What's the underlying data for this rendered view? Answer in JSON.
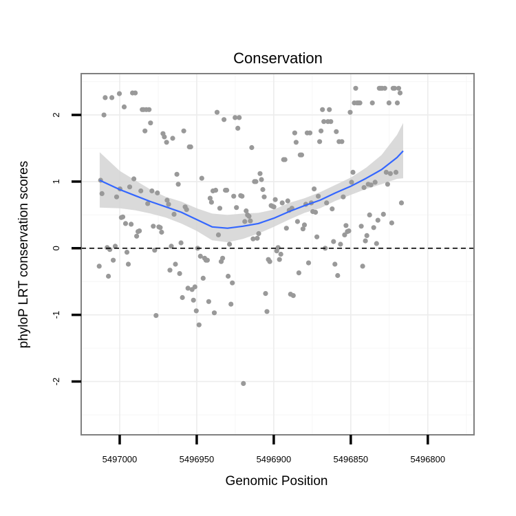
{
  "chart_data": {
    "type": "scatter",
    "title": "Conservation",
    "xlabel": "Genomic Position",
    "ylabel": "phyloP LRT conservation scores",
    "x_reversed": true,
    "xlim": [
      5497025,
      5496770
    ],
    "ylim": [
      -2.8,
      2.62
    ],
    "x_ticks": [
      5497000,
      5496950,
      5496900,
      5496850,
      5496800
    ],
    "x_tick_labels": [
      "5497000",
      "5496950",
      "5496900",
      "5496850",
      "5496800"
    ],
    "y_ticks": [
      -2,
      -1,
      0,
      1,
      2
    ],
    "y_tick_labels": [
      "-2",
      "-1",
      "0",
      "1",
      "2"
    ],
    "grid": true,
    "reference_line": {
      "y": 0,
      "style": "dashed"
    },
    "colors": {
      "points": "#999999",
      "smooth": "#3366ff",
      "ribbon": "#d3d3d3",
      "panel_border": "#7f7f7f",
      "grid_major": "#ececec",
      "grid_minor": "#f6f6f6"
    },
    "points": [
      [
        5497013.3,
        -0.27
      ],
      [
        5497012.4,
        1.02
      ],
      [
        5497011.5,
        0.82
      ],
      [
        5497010.2,
        2.0
      ],
      [
        5497009.4,
        2.26
      ],
      [
        5497008.1,
        0.01
      ],
      [
        5497007.3,
        -0.42
      ],
      [
        5497006.4,
        -0.02
      ],
      [
        5497005.1,
        2.26
      ],
      [
        5497004.2,
        -0.18
      ],
      [
        5497002.9,
        0.03
      ],
      [
        5497002.0,
        0.77
      ],
      [
        5497000.2,
        2.32
      ],
      [
        5496999.8,
        0.89
      ],
      [
        5496998.9,
        0.46
      ],
      [
        5496998.0,
        0.47
      ],
      [
        5496997.1,
        2.12
      ],
      [
        5496996.2,
        0.37
      ],
      [
        5496995.3,
        -0.06
      ],
      [
        5496994.4,
        -0.24
      ],
      [
        5496993.5,
        0.92
      ],
      [
        5496992.6,
        0.36
      ],
      [
        5496991.7,
        2.33
      ],
      [
        5496990.8,
        1.04
      ],
      [
        5496989.9,
        2.33
      ],
      [
        5496989.0,
        0.18
      ],
      [
        5496988.1,
        0.25
      ],
      [
        5496987.2,
        0.26
      ],
      [
        5496986.3,
        0.86
      ],
      [
        5496985.4,
        2.08
      ],
      [
        5496984.5,
        2.08
      ],
      [
        5496983.6,
        1.76
      ],
      [
        5496982.7,
        2.08
      ],
      [
        5496981.8,
        0.67
      ],
      [
        5496980.9,
        2.08
      ],
      [
        5496980.0,
        1.88
      ],
      [
        5496979.1,
        0.86
      ],
      [
        5496978.2,
        0.33
      ],
      [
        5496977.3,
        -0.03
      ],
      [
        5496976.4,
        -1.01
      ],
      [
        5496975.5,
        0.83
      ],
      [
        5496974.6,
        0.32
      ],
      [
        5496973.7,
        0.31
      ],
      [
        5496972.8,
        0.24
      ],
      [
        5496971.9,
        1.72
      ],
      [
        5496971.0,
        1.67
      ],
      [
        5496969.6,
        1.59
      ],
      [
        5496969.2,
        0.72
      ],
      [
        5496968.3,
        0.66
      ],
      [
        5496967.4,
        -0.33
      ],
      [
        5496966.5,
        0.03
      ],
      [
        5496965.6,
        1.65
      ],
      [
        5496964.7,
        0.51
      ],
      [
        5496963.8,
        -0.24
      ],
      [
        5496962.9,
        1.11
      ],
      [
        5496962.0,
        0.96
      ],
      [
        5496961.1,
        -0.38
      ],
      [
        5496960.2,
        0.08
      ],
      [
        5496959.3,
        -0.74
      ],
      [
        5496958.4,
        1.76
      ],
      [
        5496957.5,
        0.62
      ],
      [
        5496956.6,
        0.58
      ],
      [
        5496955.7,
        -0.6
      ],
      [
        5496954.8,
        1.52
      ],
      [
        5496953.9,
        1.52
      ],
      [
        5496953.0,
        -0.62
      ],
      [
        5496952.1,
        -0.78
      ],
      [
        5496951.2,
        -0.58
      ],
      [
        5496950.3,
        -0.94
      ],
      [
        5496949.4,
        0.0
      ],
      [
        5496948.5,
        -1.15
      ],
      [
        5496947.6,
        -0.12
      ],
      [
        5496946.7,
        1.05
      ],
      [
        5496945.8,
        -0.45
      ],
      [
        5496944.9,
        -0.15
      ],
      [
        5496944.0,
        -0.18
      ],
      [
        5496943.1,
        -0.18
      ],
      [
        5496942.2,
        -0.8
      ],
      [
        5496941.3,
        0.75
      ],
      [
        5496940.4,
        0.69
      ],
      [
        5496939.5,
        0.86
      ],
      [
        5496938.6,
        -0.97
      ],
      [
        5496937.7,
        0.87
      ],
      [
        5496936.8,
        2.04
      ],
      [
        5496935.9,
        0.2
      ],
      [
        5496935.0,
        0.6
      ],
      [
        5496934.1,
        -0.2
      ],
      [
        5496933.2,
        -0.15
      ],
      [
        5496932.3,
        1.93
      ],
      [
        5496931.4,
        0.87
      ],
      [
        5496930.5,
        0.87
      ],
      [
        5496929.6,
        -0.42
      ],
      [
        5496928.7,
        0.06
      ],
      [
        5496927.8,
        -0.84
      ],
      [
        5496926.9,
        -0.52
      ],
      [
        5496926.0,
        0.78
      ],
      [
        5496925.1,
        1.96
      ],
      [
        5496924.2,
        0.61
      ],
      [
        5496923.3,
        1.8
      ],
      [
        5496922.4,
        1.96
      ],
      [
        5496921.5,
        0.79
      ],
      [
        5496920.6,
        0.78
      ],
      [
        5496919.7,
        -2.03
      ],
      [
        5496918.8,
        0.4
      ],
      [
        5496917.9,
        0.56
      ],
      [
        5496917.0,
        0.5
      ],
      [
        5496916.1,
        0.48
      ],
      [
        5496915.2,
        0.41
      ],
      [
        5496914.3,
        1.51
      ],
      [
        5496913.4,
        0.14
      ],
      [
        5496912.5,
        1.0
      ],
      [
        5496911.6,
        1.0
      ],
      [
        5496910.7,
        0.15
      ],
      [
        5496909.8,
        0.22
      ],
      [
        5496908.9,
        1.12
      ],
      [
        5496908.0,
        1.03
      ],
      [
        5496907.1,
        0.88
      ],
      [
        5496906.2,
        0.77
      ],
      [
        5496905.3,
        -0.68
      ],
      [
        5496904.4,
        -0.95
      ],
      [
        5496903.5,
        -0.17
      ],
      [
        5496902.6,
        -0.2
      ],
      [
        5496901.7,
        0.64
      ],
      [
        5496900.8,
        0.63
      ],
      [
        5496899.9,
        0.62
      ],
      [
        5496899.0,
        0.73
      ],
      [
        5496898.1,
        -0.04
      ],
      [
        5496897.2,
        0.01
      ],
      [
        5496896.3,
        -0.17
      ],
      [
        5496895.4,
        -0.09
      ],
      [
        5496894.5,
        0.68
      ],
      [
        5496893.6,
        1.33
      ],
      [
        5496892.7,
        1.33
      ],
      [
        5496891.8,
        0.3
      ],
      [
        5496890.9,
        0.71
      ],
      [
        5496890.0,
        0.57
      ],
      [
        5496889.1,
        -0.69
      ],
      [
        5496888.2,
        0.6
      ],
      [
        5496887.3,
        -0.71
      ],
      [
        5496886.4,
        1.73
      ],
      [
        5496885.5,
        1.59
      ],
      [
        5496884.6,
        0.4
      ],
      [
        5496883.7,
        -0.37
      ],
      [
        5496882.8,
        1.4
      ],
      [
        5496881.9,
        1.4
      ],
      [
        5496881.0,
        0.29
      ],
      [
        5496880.1,
        0.35
      ],
      [
        5496879.2,
        0.66
      ],
      [
        5496878.3,
        1.73
      ],
      [
        5496877.4,
        -0.22
      ],
      [
        5496876.5,
        1.73
      ],
      [
        5496875.6,
        0.68
      ],
      [
        5496874.7,
        0.55
      ],
      [
        5496873.8,
        0.89
      ],
      [
        5496872.9,
        0.54
      ],
      [
        5496872.0,
        0.17
      ],
      [
        5496871.1,
        0.78
      ],
      [
        5496870.2,
        1.6
      ],
      [
        5496869.3,
        1.76
      ],
      [
        5496868.4,
        2.08
      ],
      [
        5496867.5,
        1.9
      ],
      [
        5496866.6,
        0.0
      ],
      [
        5496865.7,
        0.68
      ],
      [
        5496864.8,
        1.9
      ],
      [
        5496863.9,
        2.08
      ],
      [
        5496863.0,
        1.9
      ],
      [
        5496862.1,
        0.59
      ],
      [
        5496861.2,
        0.1
      ],
      [
        5496860.3,
        -0.24
      ],
      [
        5496859.4,
        1.75
      ],
      [
        5496858.5,
        -0.41
      ],
      [
        5496857.6,
        1.6
      ],
      [
        5496856.7,
        0.06
      ],
      [
        5496855.8,
        1.6
      ],
      [
        5496854.9,
        0.77
      ],
      [
        5496854.0,
        0.2
      ],
      [
        5496853.1,
        0.34
      ],
      [
        5496852.2,
        0.25
      ],
      [
        5496851.3,
        0.26
      ],
      [
        5496850.4,
        2.04
      ],
      [
        5496849.5,
        0.99
      ],
      [
        5496848.6,
        1.14
      ],
      [
        5496847.7,
        2.18
      ],
      [
        5496846.8,
        2.4
      ],
      [
        5496845.9,
        2.18
      ],
      [
        5496845.0,
        2.18
      ],
      [
        5496844.1,
        2.18
      ],
      [
        5496843.2,
        0.33
      ],
      [
        5496842.3,
        -0.27
      ],
      [
        5496841.4,
        0.91
      ],
      [
        5496840.5,
        0.11
      ],
      [
        5496839.6,
        0.19
      ],
      [
        5496838.7,
        0.96
      ],
      [
        5496837.8,
        0.5
      ],
      [
        5496836.9,
        0.95
      ],
      [
        5496836.0,
        2.18
      ],
      [
        5496835.1,
        0.31
      ],
      [
        5496834.2,
        0.99
      ],
      [
        5496833.3,
        0.07
      ],
      [
        5496832.4,
        0.42
      ],
      [
        5496831.5,
        2.4
      ],
      [
        5496830.6,
        2.4
      ],
      [
        5496829.7,
        2.4
      ],
      [
        5496828.8,
        0.51
      ],
      [
        5496827.9,
        2.4
      ],
      [
        5496827.0,
        1.14
      ],
      [
        5496826.1,
        0.96
      ],
      [
        5496825.2,
        2.18
      ],
      [
        5496824.3,
        1.12
      ],
      [
        5496823.4,
        0.38
      ],
      [
        5496822.5,
        2.4
      ],
      [
        5496821.6,
        2.4
      ],
      [
        5496820.7,
        1.14
      ],
      [
        5496819.8,
        2.18
      ],
      [
        5496818.9,
        2.4
      ],
      [
        5496818.0,
        2.33
      ],
      [
        5496817.1,
        0.68
      ]
    ],
    "smooth": {
      "x": [
        5497013,
        5497000,
        5496990,
        5496980,
        5496970,
        5496960,
        5496950,
        5496940,
        5496930,
        5496920,
        5496910,
        5496900,
        5496890,
        5496880,
        5496870,
        5496860,
        5496850,
        5496840,
        5496830,
        5496820,
        5496816
      ],
      "y": [
        1.02,
        0.88,
        0.79,
        0.7,
        0.62,
        0.54,
        0.43,
        0.32,
        0.3,
        0.33,
        0.37,
        0.45,
        0.55,
        0.64,
        0.72,
        0.83,
        0.93,
        1.05,
        1.18,
        1.36,
        1.46
      ],
      "lower": [
        0.61,
        0.6,
        0.57,
        0.52,
        0.46,
        0.37,
        0.26,
        0.12,
        0.09,
        0.14,
        0.22,
        0.32,
        0.43,
        0.53,
        0.6,
        0.71,
        0.8,
        0.89,
        0.96,
        1.04,
        1.05
      ],
      "upper": [
        1.44,
        1.16,
        1.02,
        0.88,
        0.77,
        0.7,
        0.6,
        0.52,
        0.5,
        0.52,
        0.53,
        0.58,
        0.68,
        0.75,
        0.84,
        0.95,
        1.06,
        1.21,
        1.4,
        1.7,
        1.88
      ]
    }
  }
}
